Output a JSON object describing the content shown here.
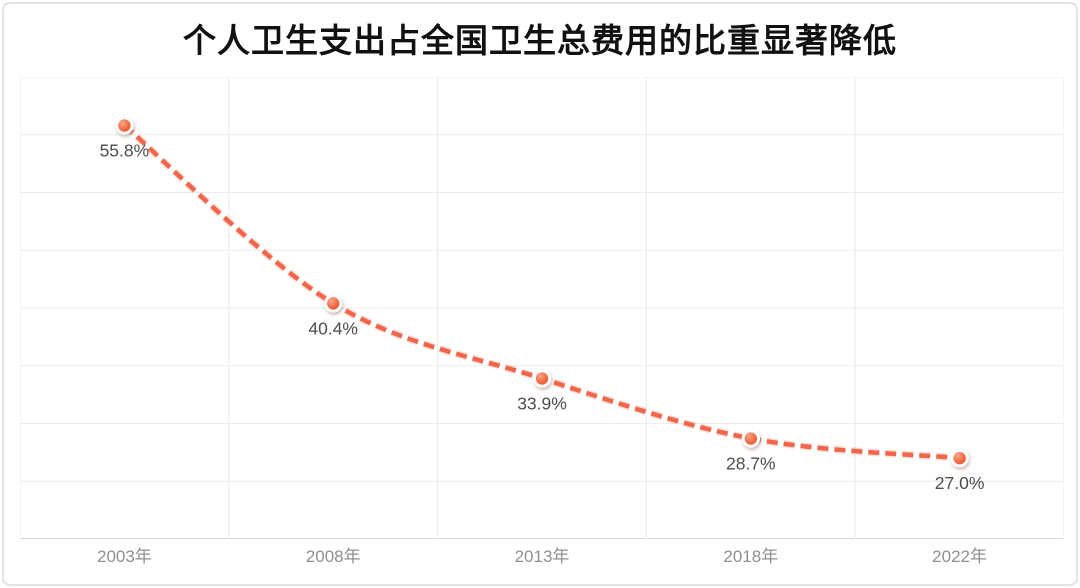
{
  "chart_data": {
    "type": "line",
    "title": "个人卫生支出占全国卫生总费用的比重显著降低",
    "categories": [
      "2003年",
      "2008年",
      "2013年",
      "2018年",
      "2022年"
    ],
    "values": [
      55.8,
      40.4,
      33.9,
      28.7,
      27.0
    ],
    "labels": [
      "55.8%",
      "40.4%",
      "33.9%",
      "28.7%",
      "27.0%"
    ],
    "xlabel": "",
    "ylabel": "",
    "ylim": [
      20,
      60
    ],
    "y_grid_step": 5,
    "grid": true,
    "legend": false,
    "line_style": "dashed",
    "marker": "circle",
    "colors": {
      "line": "#f1664a",
      "line_halo": "rgba(242,105,76,0.22)",
      "marker_fill": "#ee5a33",
      "marker_highlight": "#f9a586",
      "marker_ring": "#ffffff",
      "data_label": "#4d4d4d",
      "tick_label": "#8f8f8f",
      "gridline": "#ececec",
      "axis_line": "#c9c9c9",
      "title": "#111111",
      "card_border": "#e2e2e2",
      "background": "#ffffff"
    }
  }
}
